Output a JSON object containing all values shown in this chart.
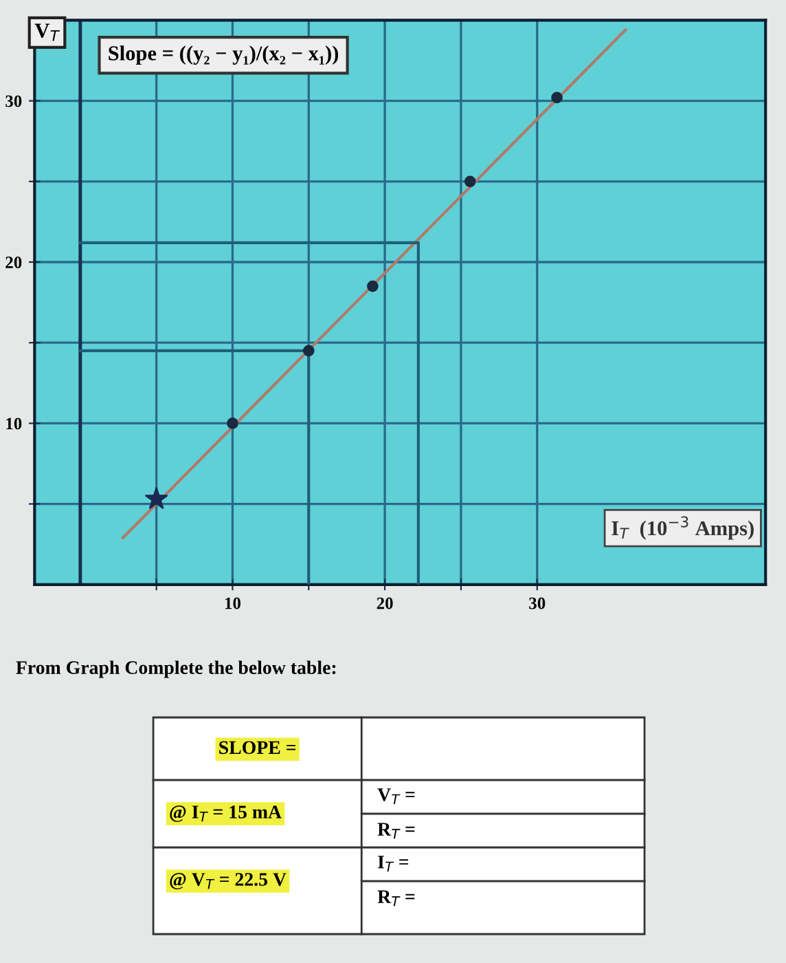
{
  "chart_data": {
    "type": "scatter",
    "ylabel": "V$_{T}$",
    "xlabel": "I$_{T}$  (10$^{−3}$ Amps)",
    "annotations": [
      "Slope = ((y₂ − y₁)/(x₂ − x₁))",
      "From Graph Complete the below table:",
      "SLOPE =",
      "@ I$_{T}$ = 15 mA",
      "V$_{T}$ =",
      "R$_{T}$ =",
      "@ V$_{T}$ = 22.5 V",
      "I$_{T}$ =",
      "R$_{T}$ ="
    ],
    "series": [
      {
        "type": "line",
        "color": "#b07a6a",
        "x": [
          2.8,
          35.8
        ],
        "values": [
          2.9,
          34.4
        ],
        "marker": "none"
      },
      {
        "color": "#1a2a40",
        "x": [
          10,
          15,
          19.2,
          25.6,
          31.3
        ],
        "values": [
          10,
          14.5,
          18.5,
          25,
          30.2
        ],
        "marker": "circle"
      },
      {
        "color": "#1a2a50",
        "x": [
          5
        ],
        "values": [
          5.3
        ],
        "marker": "star"
      },
      {
        "type": "line",
        "color": "#1f5f7a",
        "x": [
          0,
          15,
          15
        ],
        "values": [
          14.5,
          14.5,
          0
        ],
        "marker": "none"
      },
      {
        "type": "line",
        "color": "#1f5f7a",
        "x": [
          0,
          22.2,
          22.2
        ],
        "values": [
          21.2,
          21.2,
          0
        ],
        "marker": "none"
      }
    ],
    "ref_lines": [
      {
        "axis": "x",
        "value": 0,
        "color": "#1a3050"
      }
    ],
    "xlim": [
      -3,
      45
    ],
    "ylim": [
      0,
      35
    ],
    "xticks": [
      {
        "value": 5,
        "label": null
      },
      10,
      {
        "value": 15,
        "label": null
      },
      20,
      {
        "value": 25,
        "label": null
      },
      30
    ],
    "yticks": [
      {
        "value": 5,
        "label": null
      },
      10,
      {
        "value": 15,
        "label": null
      },
      20,
      {
        "value": 25,
        "label": null
      },
      30
    ],
    "grid": true
  }
}
